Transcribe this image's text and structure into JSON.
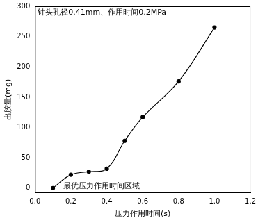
{
  "chart_data": {
    "type": "line",
    "title": "针头孔径0.41mm、作用时间0.2MPa",
    "annotations": [
      "最优压力作用时间区域"
    ],
    "x_label": "压力作用时间(s)",
    "y_label": "出胶量(mg)",
    "x": [
      0.1,
      0.2,
      0.3,
      0.4,
      0.5,
      0.6,
      0.8,
      1.0
    ],
    "values": [
      0,
      22,
      27,
      32,
      78,
      117,
      176,
      265
    ],
    "color": "#000000",
    "marker": "circle",
    "line_style": "smooth",
    "xlim": [
      0,
      1.2
    ],
    "xticks": [
      {
        "value": 0,
        "label": "0.0"
      },
      0.2,
      0.4,
      0.6,
      0.8,
      {
        "value": 1,
        "label": "1.0"
      },
      1.2
    ],
    "ylim": [
      -8,
      300
    ],
    "yticks": [
      0,
      50,
      100,
      150,
      200,
      250,
      300
    ],
    "grid": false
  }
}
